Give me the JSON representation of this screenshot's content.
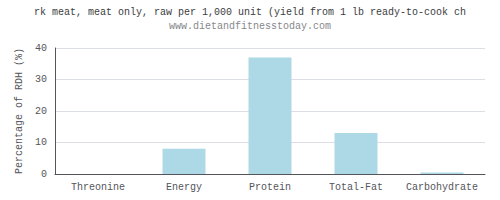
{
  "chart_data": {
    "type": "bar",
    "title": "rk meat, meat only, raw per 1,000 unit (yield from 1 lb ready-to-cook ch",
    "subtitle": "www.dietandfitnesstoday.com",
    "categories": [
      "Threonine",
      "Energy",
      "Protein",
      "Total-Fat",
      "Carbohydrate"
    ],
    "values": [
      0,
      8,
      37,
      13,
      0.5
    ],
    "color": "#add8e6",
    "ylabel": "Percentage of RDH (%)",
    "ylim": [
      0,
      40
    ],
    "yticks": [
      0,
      10,
      20,
      30,
      40
    ],
    "grid": true
  }
}
